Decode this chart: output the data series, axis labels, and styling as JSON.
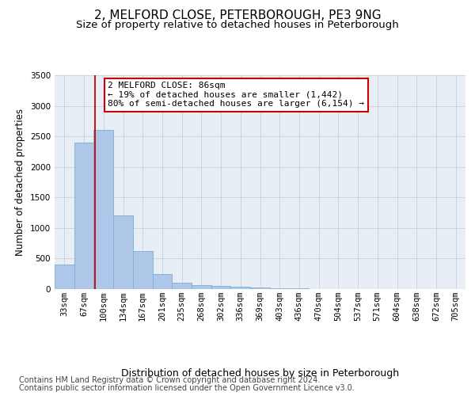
{
  "title": "2, MELFORD CLOSE, PETERBOROUGH, PE3 9NG",
  "subtitle": "Size of property relative to detached houses in Peterborough",
  "xlabel": "Distribution of detached houses by size in Peterborough",
  "ylabel": "Number of detached properties",
  "footer1": "Contains HM Land Registry data © Crown copyright and database right 2024.",
  "footer2": "Contains public sector information licensed under the Open Government Licence v3.0.",
  "categories": [
    "33sqm",
    "67sqm",
    "100sqm",
    "134sqm",
    "167sqm",
    "201sqm",
    "235sqm",
    "268sqm",
    "302sqm",
    "336sqm",
    "369sqm",
    "403sqm",
    "436sqm",
    "470sqm",
    "504sqm",
    "537sqm",
    "571sqm",
    "604sqm",
    "638sqm",
    "672sqm",
    "705sqm"
  ],
  "values": [
    400,
    2400,
    2600,
    1200,
    620,
    250,
    100,
    65,
    55,
    40,
    20,
    15,
    10,
    5,
    3,
    2,
    1,
    1,
    0,
    0,
    0
  ],
  "bar_color": "#aec6e8",
  "bar_edge_color": "#7bafd4",
  "plot_bg_color": "#e8eef5",
  "red_line_bin_index": 1.57,
  "annotation_text": "2 MELFORD CLOSE: 86sqm\n← 19% of detached houses are smaller (1,442)\n80% of semi-detached houses are larger (6,154) →",
  "annotation_box_color": "#ffffff",
  "annotation_border_color": "#cc0000",
  "ylim": [
    0,
    3500
  ],
  "yticks": [
    0,
    500,
    1000,
    1500,
    2000,
    2500,
    3000,
    3500
  ],
  "title_fontsize": 11,
  "subtitle_fontsize": 9.5,
  "xlabel_fontsize": 9,
  "ylabel_fontsize": 8.5,
  "tick_fontsize": 7.5,
  "annotation_fontsize": 8,
  "footer_fontsize": 7
}
